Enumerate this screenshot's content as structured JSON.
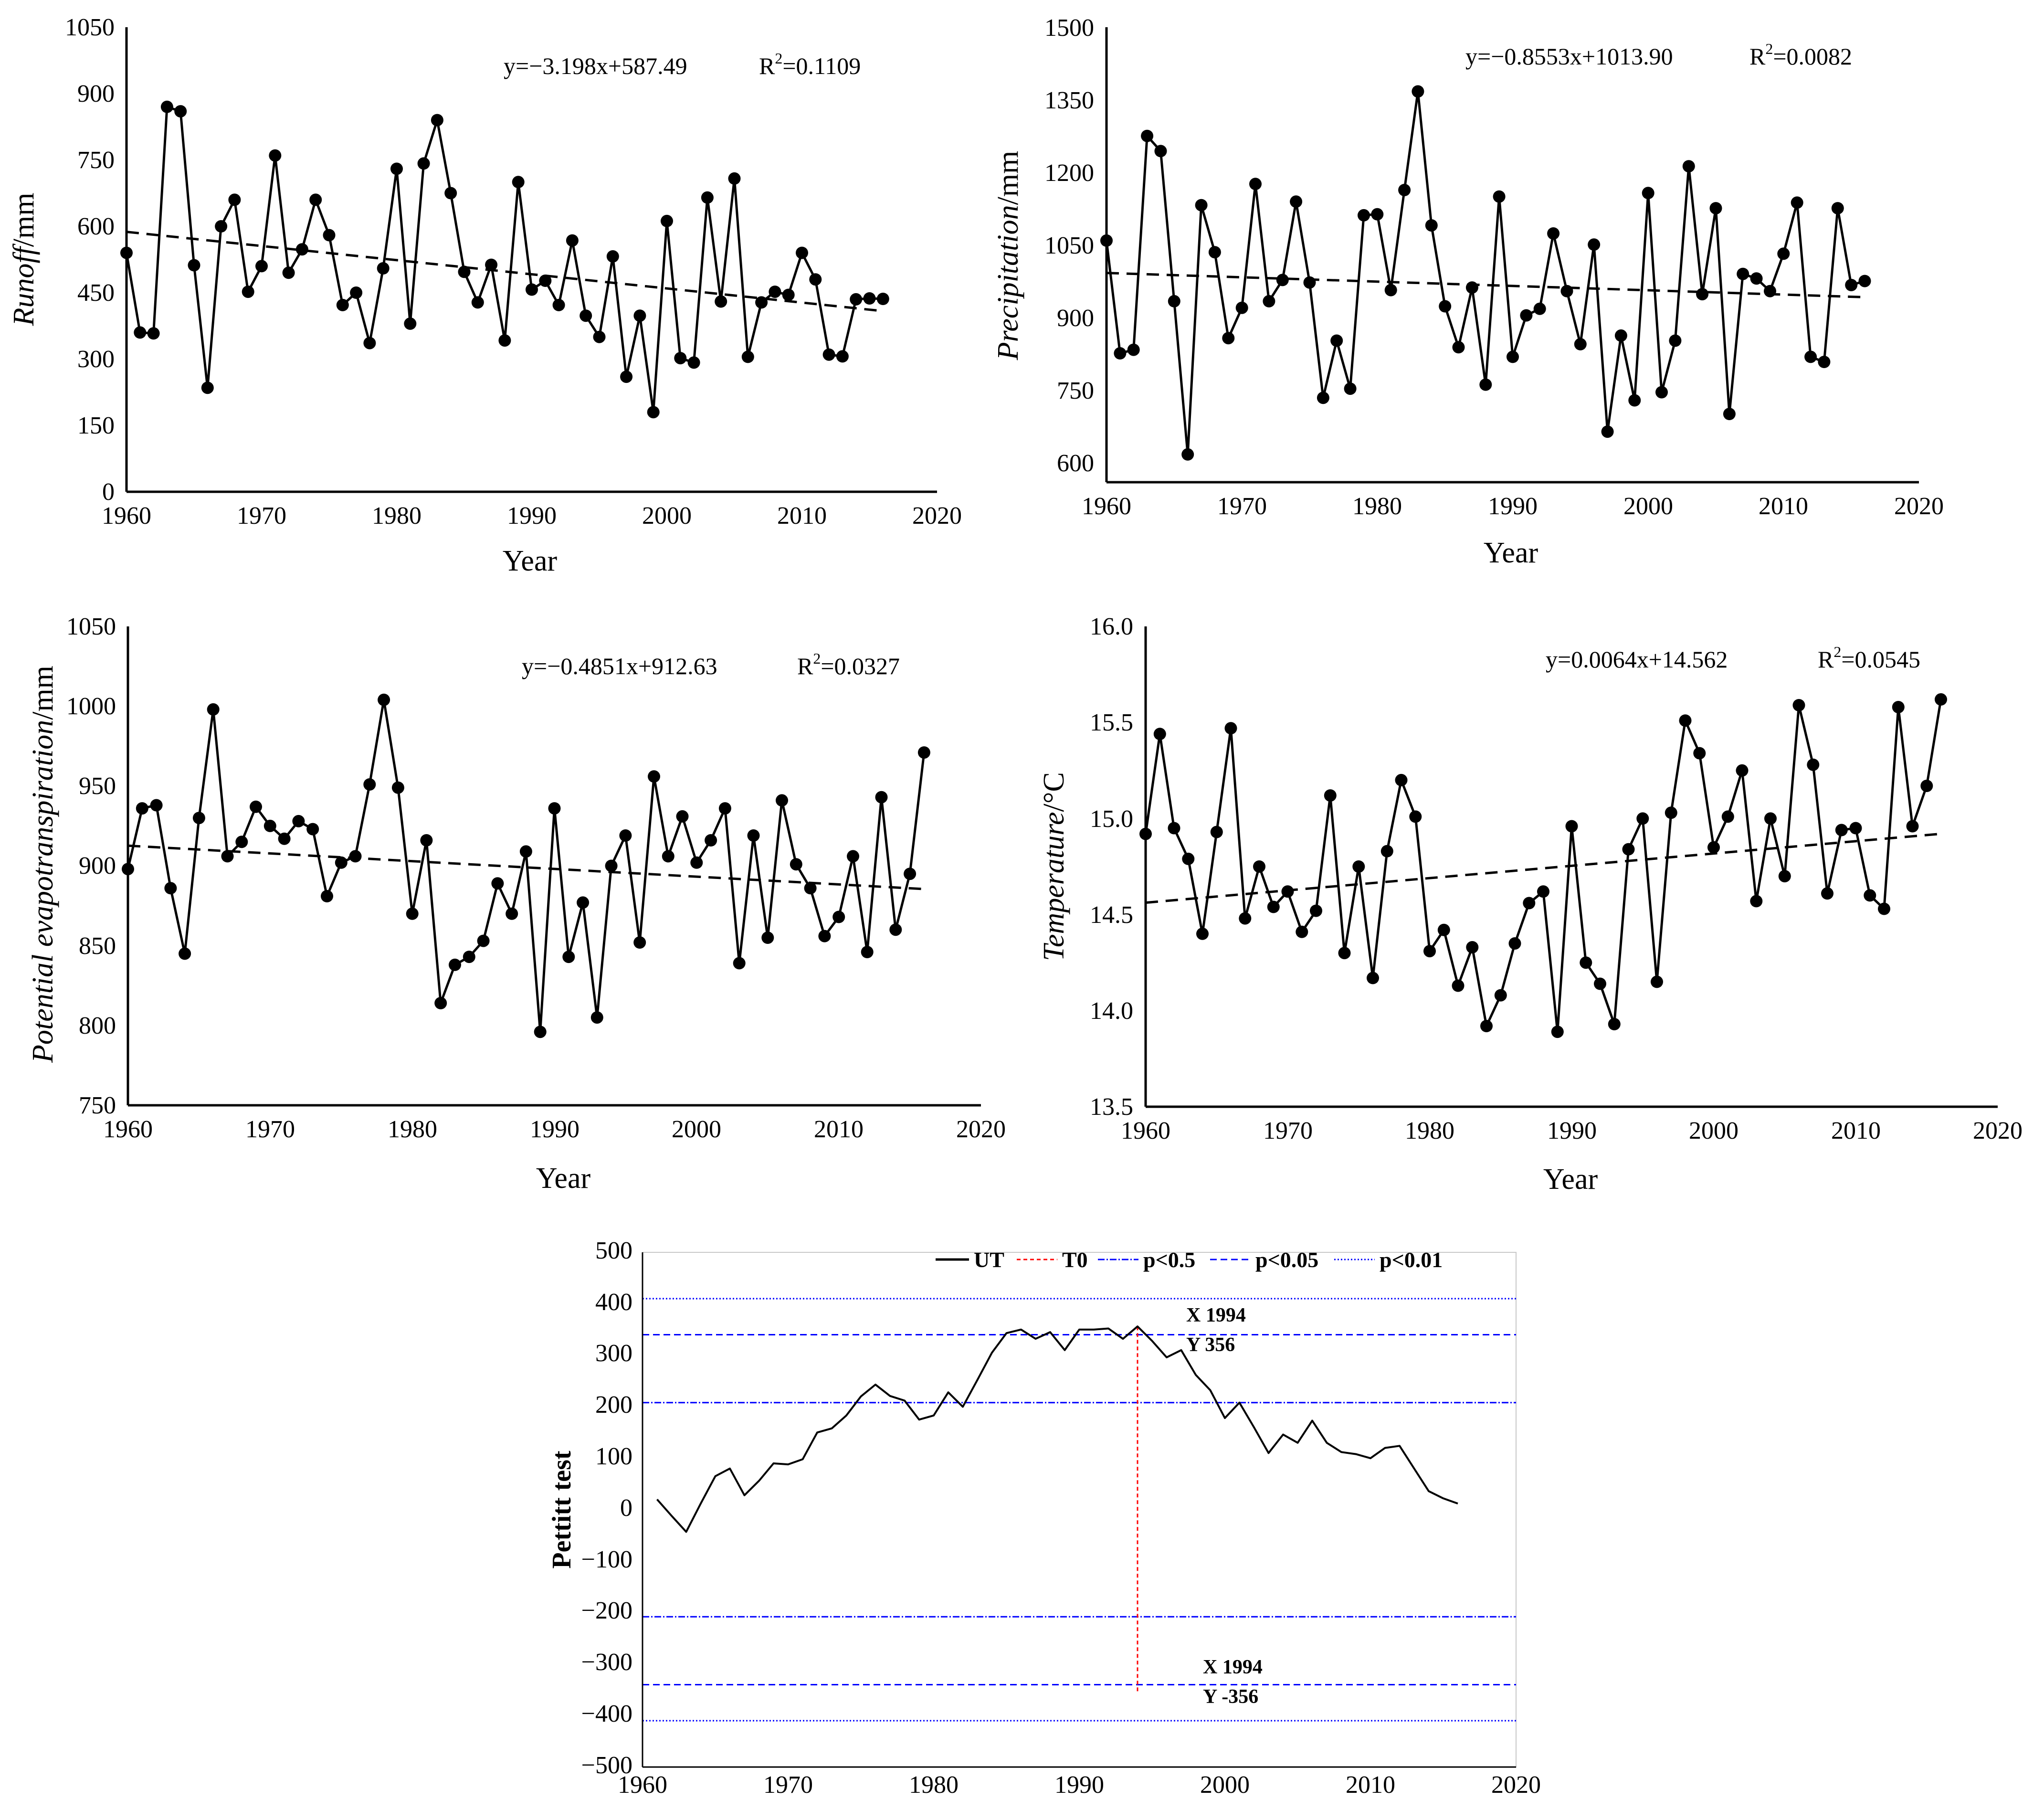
{
  "chart_data": [
    {
      "type": "line",
      "id": "runoff",
      "x": [
        1960,
        1961,
        1962,
        1963,
        1964,
        1965,
        1966,
        1967,
        1968,
        1969,
        1970,
        1971,
        1972,
        1973,
        1974,
        1975,
        1976,
        1977,
        1978,
        1979,
        1980,
        1981,
        1982,
        1983,
        1984,
        1985,
        1986,
        1987,
        1988,
        1989,
        1990,
        1991,
        1992,
        1993,
        1994,
        1995,
        1996,
        1997,
        1998,
        1999,
        2000,
        2001,
        2002,
        2003,
        2004,
        2005,
        2006,
        2007,
        2008,
        2009,
        2010,
        2011,
        2012,
        2013,
        2014,
        2015,
        2016
      ],
      "values": [
        540,
        360,
        358,
        870,
        860,
        512,
        235,
        600,
        660,
        452,
        510,
        760,
        495,
        548,
        660,
        580,
        422,
        450,
        336,
        505,
        730,
        380,
        742,
        840,
        675,
        497,
        428,
        513,
        342,
        700,
        457,
        477,
        422,
        568,
        398,
        350,
        532,
        260,
        398,
        180,
        612,
        302,
        292,
        665,
        430,
        708,
        305,
        428,
        452,
        445,
        540,
        480,
        310,
        306,
        435,
        437,
        436
      ],
      "trend": {
        "slope": -3.198,
        "intercept_at_1960": 587.49
      },
      "equation": "y=−3.198x+587.49",
      "r2_label": "R",
      "r2_sup": "2",
      "r2_value": "=0.1109",
      "ylabel_italic": "Runoff",
      "ylabel_unit": "/mm",
      "xlabel": "Year",
      "xlim": [
        1960,
        2020
      ],
      "ylim": [
        0,
        1050
      ],
      "xticks": [
        "1960",
        "1970",
        "1980",
        "1990",
        "2000",
        "2010",
        "2020"
      ],
      "yticks": [
        "0",
        "150",
        "300",
        "450",
        "600",
        "750",
        "900",
        "1050"
      ]
    },
    {
      "type": "line",
      "id": "precipitation",
      "x": [
        1960,
        1961,
        1962,
        1963,
        1964,
        1965,
        1966,
        1967,
        1968,
        1969,
        1970,
        1971,
        1972,
        1973,
        1974,
        1975,
        1976,
        1977,
        1978,
        1979,
        1980,
        1981,
        1982,
        1983,
        1984,
        1985,
        1986,
        1987,
        1988,
        1989,
        1990,
        1991,
        1992,
        1993,
        1994,
        1995,
        1996,
        1997,
        1998,
        1999,
        2000,
        2001,
        2002,
        2003,
        2004,
        2005,
        2006,
        2007,
        2008,
        2009,
        2010,
        2011,
        2012,
        2013,
        2014,
        2015,
        2016
      ],
      "values": [
        1078,
        855,
        862,
        1285,
        1255,
        958,
        655,
        1148,
        1055,
        885,
        945,
        1190,
        958,
        1000,
        1155,
        995,
        767,
        880,
        785,
        1128,
        1130,
        980,
        1178,
        1373,
        1108,
        948,
        867,
        985,
        793,
        1165,
        848,
        930,
        943,
        1092,
        978,
        873,
        1070,
        700,
        890,
        762,
        1172,
        778,
        880,
        1225,
        972,
        1142,
        735,
        1012,
        1003,
        978,
        1052,
        1153,
        848,
        838,
        1142,
        990,
        998
      ],
      "trend": {
        "slope": -0.8553,
        "intercept_at_1960": 1013.9
      },
      "equation": "y=−0.8553x+1013.90",
      "r2_label": "R",
      "r2_sup": "2",
      "r2_value": "=0.0082",
      "ylabel_italic": "Precipitation",
      "ylabel_unit": "/mm",
      "xlabel": "Year",
      "xlim": [
        1960,
        2020
      ],
      "ylim": [
        600,
        1500
      ],
      "xticks": [
        "1960",
        "1970",
        "1980",
        "1990",
        "2000",
        "2010",
        "2020"
      ],
      "yticks": [
        "600",
        "750",
        "900",
        "1050",
        "1200",
        "1350",
        "1500"
      ]
    },
    {
      "type": "line",
      "id": "pet",
      "x": [
        1960,
        1961,
        1962,
        1963,
        1964,
        1965,
        1966,
        1967,
        1968,
        1969,
        1970,
        1971,
        1972,
        1973,
        1974,
        1975,
        1976,
        1977,
        1978,
        1979,
        1980,
        1981,
        1982,
        1983,
        1984,
        1985,
        1986,
        1987,
        1988,
        1989,
        1990,
        1991,
        1992,
        1993,
        1994,
        1995,
        1996,
        1997,
        1998,
        1999,
        2000,
        2001,
        2002,
        2003,
        2004,
        2005,
        2006,
        2007,
        2008,
        2009,
        2010,
        2011,
        2012,
        2013,
        2014,
        2015,
        2016
      ],
      "values": [
        898,
        936,
        938,
        886,
        845,
        930,
        998,
        906,
        915,
        937,
        925,
        917,
        928,
        923,
        881,
        902,
        906,
        951,
        1004,
        949,
        870,
        916,
        814,
        838,
        843,
        853,
        889,
        870,
        909,
        796,
        936,
        843,
        877,
        805,
        900,
        919,
        852,
        956,
        906,
        931,
        902,
        916,
        936,
        839,
        919,
        855,
        941,
        901,
        886,
        856,
        868,
        906,
        846,
        943,
        860,
        895,
        971
      ],
      "trend": {
        "slope": -0.4851,
        "intercept_at_1960": 912.63
      },
      "equation": "y=−0.4851x+912.63",
      "r2_label": "R",
      "r2_sup": "2",
      "r2_value": "=0.0327",
      "ylabel_italic": "Potential evapotranspiration",
      "ylabel_unit": "/mm",
      "xlabel": "Year",
      "xlim": [
        1960,
        2020
      ],
      "ylim": [
        750,
        1050
      ],
      "xticks": [
        "1960",
        "1970",
        "1980",
        "1990",
        "2000",
        "2010",
        "2020"
      ],
      "yticks": [
        "750",
        "800",
        "850",
        "900",
        "950",
        "1000",
        "1050"
      ]
    },
    {
      "type": "line",
      "id": "temperature",
      "x": [
        1960,
        1961,
        1962,
        1963,
        1964,
        1965,
        1966,
        1967,
        1968,
        1969,
        1970,
        1971,
        1972,
        1973,
        1974,
        1975,
        1976,
        1977,
        1978,
        1979,
        1980,
        1981,
        1982,
        1983,
        1984,
        1985,
        1986,
        1987,
        1988,
        1989,
        1990,
        1991,
        1992,
        1993,
        1994,
        1995,
        1996,
        1997,
        1998,
        1999,
        2000,
        2001,
        2002,
        2003,
        2004,
        2005,
        2006,
        2007,
        2008,
        2009,
        2010,
        2011,
        2012,
        2013,
        2014,
        2015,
        2016
      ],
      "values": [
        14.92,
        15.44,
        14.95,
        14.79,
        14.4,
        14.93,
        15.47,
        14.48,
        14.75,
        14.54,
        14.62,
        14.41,
        14.52,
        15.12,
        14.3,
        14.75,
        14.17,
        14.83,
        15.2,
        15.01,
        14.31,
        14.42,
        14.13,
        14.33,
        13.92,
        14.08,
        14.35,
        14.56,
        14.62,
        13.89,
        14.96,
        14.25,
        14.14,
        13.93,
        14.84,
        15.0,
        14.15,
        15.03,
        15.51,
        15.34,
        14.85,
        15.01,
        15.25,
        14.57,
        15.0,
        14.7,
        15.59,
        15.28,
        14.61,
        14.94,
        14.95,
        14.6,
        14.53,
        15.58,
        14.96,
        15.17,
        15.62
      ],
      "trend": {
        "slope": 0.0064,
        "intercept_at_1960": 14.562
      },
      "equation": "y=0.0064x+14.562",
      "r2_label": "R",
      "r2_sup": "2",
      "r2_value": "=0.0545",
      "ylabel_italic": "Temperature",
      "ylabel_unit": "/°C",
      "xlabel": "Year",
      "xlim": [
        1960,
        2020
      ],
      "ylim": [
        13.5,
        16.0
      ],
      "xticks": [
        "1960",
        "1970",
        "1980",
        "1990",
        "2000",
        "2010",
        "2020"
      ],
      "yticks": [
        "13.5",
        "14.0",
        "14.5",
        "15.0",
        "15.5",
        "16.0"
      ]
    },
    {
      "type": "line",
      "id": "pettitt",
      "x": [
        1961,
        1962,
        1963,
        1964,
        1965,
        1966,
        1967,
        1968,
        1969,
        1970,
        1971,
        1972,
        1973,
        1974,
        1975,
        1976,
        1977,
        1978,
        1979,
        1980,
        1981,
        1982,
        1983,
        1984,
        1985,
        1986,
        1987,
        1988,
        1989,
        1990,
        1991,
        1992,
        1993,
        1994,
        1995,
        1996,
        1997,
        1998,
        1999,
        2000,
        2001,
        2002,
        2003,
        2004,
        2005,
        2006,
        2007,
        2008,
        2009,
        2010,
        2011,
        2012,
        2013,
        2014,
        2015,
        2016
      ],
      "values": [
        20,
        -12,
        -43,
        12,
        65,
        80,
        28,
        56,
        90,
        88,
        98,
        150,
        158,
        183,
        220,
        243,
        221,
        212,
        175,
        183,
        228,
        200,
        252,
        305,
        343,
        350,
        332,
        345,
        310,
        350,
        350,
        352,
        332,
        356,
        328,
        296,
        310,
        262,
        232,
        178,
        208,
        160,
        110,
        146,
        130,
        173,
        130,
        112,
        108,
        100,
        120,
        124,
        80,
        36,
        22,
        12
      ],
      "ylabel": "Pettitt test",
      "xlim": [
        1960,
        2020
      ],
      "ylim": [
        -500,
        500
      ],
      "xticks": [
        "1960",
        "1970",
        "1980",
        "1990",
        "2000",
        "2010",
        "2020"
      ],
      "yticks": [
        "−500",
        "−400",
        "−300",
        "−200",
        "−100",
        "0",
        "100",
        "200",
        "300",
        "400",
        "500"
      ],
      "legend": [
        "UT",
        "T0",
        "p<0.5",
        "p<0.05",
        "p<0.01"
      ],
      "thresholds": {
        "p05": 208,
        "p005": 340,
        "p001": 410
      },
      "change_point": {
        "year": 1994,
        "value": 356
      },
      "annotations": {
        "upper_x": "X 1994",
        "upper_y": "Y 356",
        "lower_x": "X 1994",
        "lower_y": "Y -356"
      }
    }
  ],
  "colors": {
    "series": "#000000",
    "t0": "#ff0000",
    "threshold": "#0000ff"
  }
}
